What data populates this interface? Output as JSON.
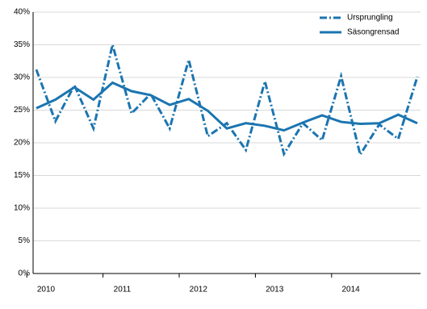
{
  "chart_data": {
    "type": "line",
    "categories": [
      "2010",
      null,
      null,
      null,
      "2011",
      null,
      null,
      null,
      "2012",
      null,
      null,
      null,
      "2013",
      null,
      null,
      null,
      "2014",
      null,
      null,
      null,
      null
    ],
    "series": [
      {
        "name": "Ursprungling",
        "color": "#1b75b0",
        "dash": "dashdot",
        "values": [
          31.2,
          23.3,
          28.8,
          22.2,
          35.0,
          24.5,
          27.5,
          22.2,
          32.7,
          21.0,
          23.0,
          18.9,
          29.4,
          18.3,
          23.0,
          20.4,
          30.2,
          18.2,
          22.8,
          20.6,
          30.1
        ]
      },
      {
        "name": "Säsongrensad",
        "color": "#1b75b0",
        "dash": "solid",
        "values": [
          25.3,
          26.6,
          28.5,
          26.6,
          29.2,
          27.9,
          27.3,
          25.8,
          26.7,
          24.9,
          22.2,
          23.0,
          22.6,
          21.9,
          23.1,
          24.2,
          23.2,
          22.9,
          23.0,
          24.3,
          23.0
        ]
      }
    ],
    "ylim": [
      0,
      40
    ],
    "yticks": [
      {
        "value": 0,
        "label": "0%"
      },
      {
        "value": 5,
        "label": "5%"
      },
      {
        "value": 10,
        "label": "10%"
      },
      {
        "value": 15,
        "label": "15%"
      },
      {
        "value": 20,
        "label": "20%"
      },
      {
        "value": 25,
        "label": "25%"
      },
      {
        "value": 30,
        "label": "30%"
      },
      {
        "value": 35,
        "label": "35%"
      },
      {
        "value": 40,
        "label": "40%"
      }
    ],
    "grid": true,
    "legend": "top-right"
  }
}
